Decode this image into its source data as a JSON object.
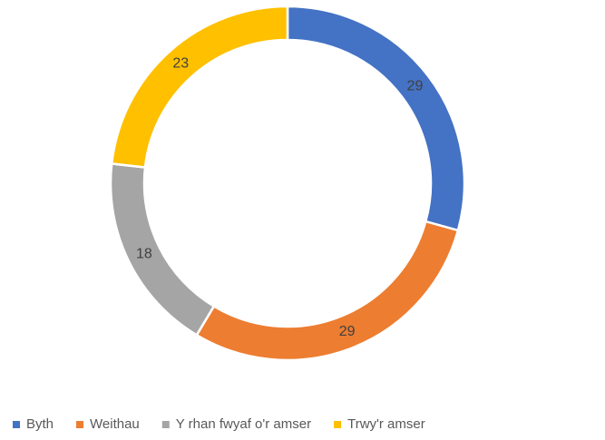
{
  "chart_data": {
    "type": "donut",
    "categories": [
      "Byth",
      "Weithau",
      "Y rhan fwyaf o'r amser",
      "Trwy'r amser"
    ],
    "values": [
      29,
      29,
      18,
      23
    ],
    "colors": [
      "#4472c4",
      "#ed7d31",
      "#a5a5a5",
      "#ffc000"
    ],
    "legend": "bottom"
  }
}
